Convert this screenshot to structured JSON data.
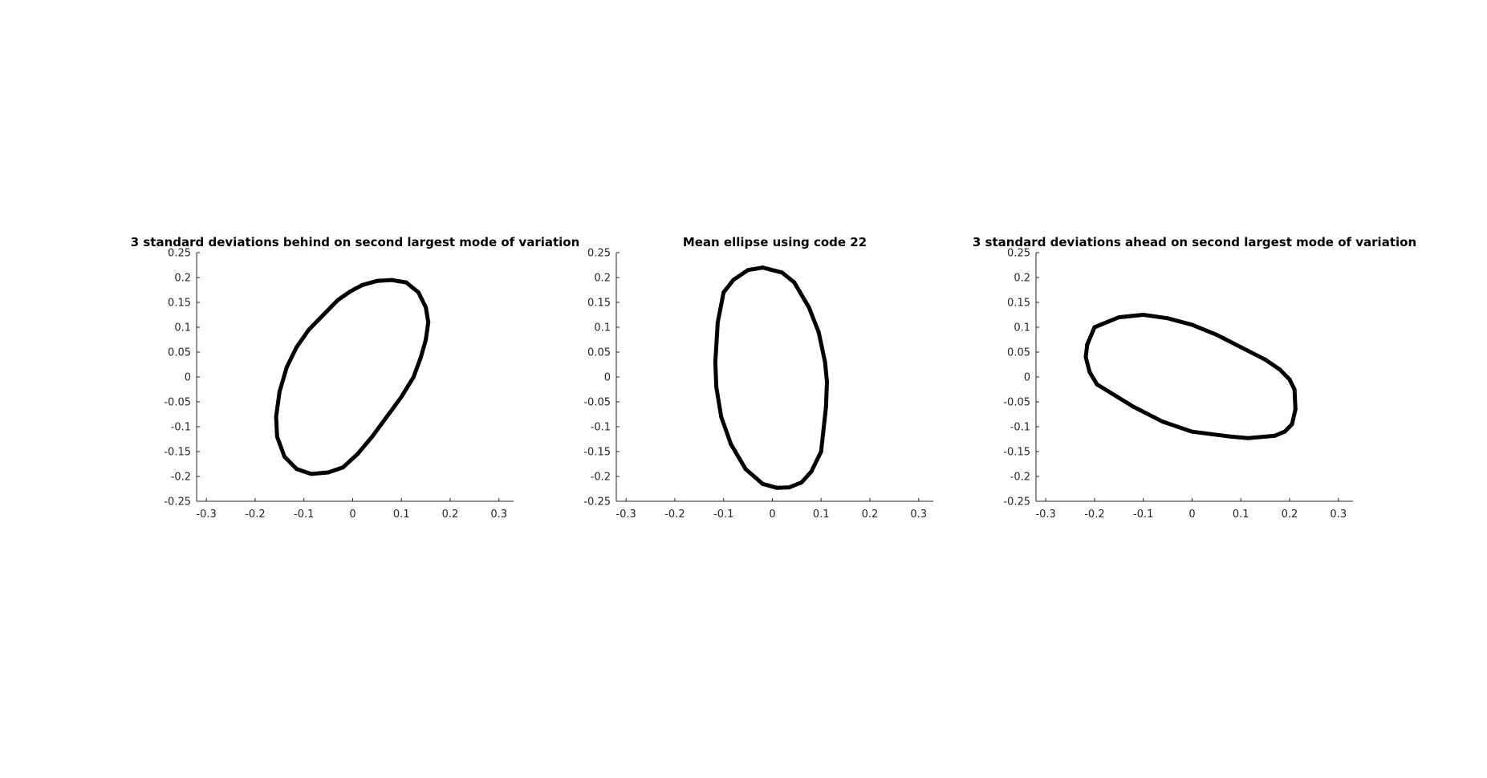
{
  "figure": {
    "background": "#ffffff"
  },
  "chart_data": [
    {
      "type": "line",
      "title": "3 standard deviations behind on second largest mode of variation",
      "xlabel": "",
      "ylabel": "",
      "xlim": [
        -0.32,
        0.33
      ],
      "ylim": [
        -0.25,
        0.25
      ],
      "xticks": [
        -0.3,
        -0.2,
        -0.1,
        0,
        0.1,
        0.2,
        0.3
      ],
      "xtick_labels": [
        "-0.3",
        "-0.2",
        "-0.1",
        "0",
        "0.1",
        "0.2",
        "0.3"
      ],
      "yticks": [
        -0.25,
        -0.2,
        -0.15,
        -0.1,
        -0.05,
        0,
        0.05,
        0.1,
        0.15,
        0.2,
        0.25
      ],
      "ytick_labels": [
        "-0.25",
        "-0.2",
        "-0.15",
        "-0.1",
        "-0.05",
        "0",
        "0.05",
        "0.1",
        "0.15",
        "0.2",
        "0.25"
      ],
      "grid": false,
      "box": false,
      "series": [
        {
          "color": "#000000",
          "x": [
            0.08,
            0.11,
            0.135,
            0.15,
            0.155,
            0.15,
            0.14,
            0.125,
            0.1,
            0.07,
            0.04,
            0.01,
            -0.02,
            -0.05,
            -0.085,
            -0.115,
            -0.14,
            -0.155,
            -0.157,
            -0.15,
            -0.135,
            -0.115,
            -0.09,
            -0.06,
            -0.03,
            -0.005,
            0.02,
            0.05,
            0.08
          ],
          "y": [
            0.195,
            0.19,
            0.17,
            0.14,
            0.11,
            0.075,
            0.04,
            0.0,
            -0.04,
            -0.08,
            -0.12,
            -0.155,
            -0.182,
            -0.192,
            -0.195,
            -0.185,
            -0.16,
            -0.12,
            -0.08,
            -0.03,
            0.02,
            0.06,
            0.095,
            0.125,
            0.155,
            0.172,
            0.185,
            0.193,
            0.195
          ]
        }
      ]
    },
    {
      "type": "line",
      "title": "Mean ellipse using code 22",
      "xlabel": "",
      "ylabel": "",
      "xlim": [
        -0.32,
        0.33
      ],
      "ylim": [
        -0.25,
        0.25
      ],
      "xticks": [
        -0.3,
        -0.2,
        -0.1,
        0,
        0.1,
        0.2,
        0.3
      ],
      "xtick_labels": [
        "-0.3",
        "-0.2",
        "-0.1",
        "0",
        "0.1",
        "0.2",
        "0.3"
      ],
      "yticks": [
        -0.25,
        -0.2,
        -0.15,
        -0.1,
        -0.05,
        0,
        0.05,
        0.1,
        0.15,
        0.2,
        0.25
      ],
      "ytick_labels": [
        "-0.25",
        "-0.2",
        "-0.15",
        "-0.1",
        "-0.05",
        "0",
        "0.05",
        "0.1",
        "0.15",
        "0.2",
        "0.25"
      ],
      "grid": false,
      "box": false,
      "series": [
        {
          "color": "#000000",
          "x": [
            -0.02,
            0.02,
            0.045,
            0.075,
            0.095,
            0.108,
            0.112,
            0.11,
            0.1,
            0.08,
            0.06,
            0.035,
            0.01,
            -0.02,
            -0.055,
            -0.085,
            -0.105,
            -0.115,
            -0.117,
            -0.112,
            -0.1,
            -0.08,
            -0.05,
            -0.02
          ],
          "y": [
            0.22,
            0.21,
            0.19,
            0.14,
            0.09,
            0.03,
            -0.01,
            -0.06,
            -0.15,
            -0.19,
            -0.212,
            -0.222,
            -0.223,
            -0.215,
            -0.185,
            -0.135,
            -0.08,
            -0.02,
            0.03,
            0.11,
            0.17,
            0.195,
            0.215,
            0.22
          ]
        }
      ]
    },
    {
      "type": "line",
      "title": "3 standard deviations ahead on second largest mode of variation",
      "xlabel": "",
      "ylabel": "",
      "xlim": [
        -0.32,
        0.33
      ],
      "ylim": [
        -0.25,
        0.25
      ],
      "xticks": [
        -0.3,
        -0.2,
        -0.1,
        0,
        0.1,
        0.2,
        0.3
      ],
      "xtick_labels": [
        "-0.3",
        "-0.2",
        "-0.1",
        "0",
        "0.1",
        "0.2",
        "0.3"
      ],
      "yticks": [
        -0.25,
        -0.2,
        -0.15,
        -0.1,
        -0.05,
        0,
        0.05,
        0.1,
        0.15,
        0.2,
        0.25
      ],
      "ytick_labels": [
        "-0.25",
        "-0.2",
        "-0.15",
        "-0.1",
        "-0.05",
        "0",
        "0.05",
        "0.1",
        "0.15",
        "0.2",
        "0.25"
      ],
      "grid": false,
      "box": false,
      "series": [
        {
          "color": "#000000",
          "x": [
            -0.215,
            -0.2,
            -0.15,
            -0.1,
            -0.05,
            0.0,
            0.05,
            0.1,
            0.15,
            0.18,
            0.2,
            0.21,
            0.212,
            0.205,
            0.19,
            0.17,
            0.15,
            0.115,
            0.08,
            0.04,
            0.0,
            -0.06,
            -0.12,
            -0.17,
            -0.195,
            -0.21,
            -0.218,
            -0.215
          ],
          "y": [
            0.065,
            0.1,
            0.12,
            0.125,
            0.118,
            0.105,
            0.085,
            0.06,
            0.035,
            0.015,
            -0.005,
            -0.025,
            -0.065,
            -0.095,
            -0.11,
            -0.118,
            -0.12,
            -0.123,
            -0.12,
            -0.115,
            -0.11,
            -0.09,
            -0.06,
            -0.03,
            -0.015,
            0.01,
            0.04,
            0.065
          ]
        }
      ]
    }
  ]
}
